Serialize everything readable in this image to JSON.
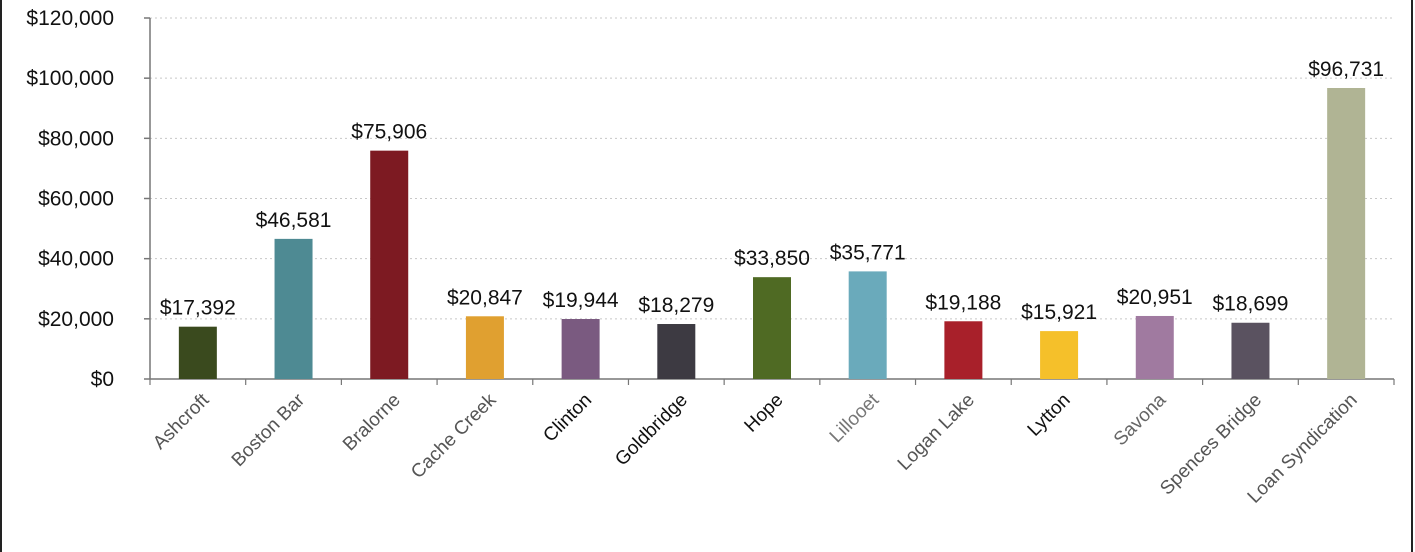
{
  "chart_data": {
    "type": "bar",
    "categories": [
      "Ashcroft",
      "Boston Bar",
      "Bralorne",
      "Cache Creek",
      "Clinton",
      "Goldbridge",
      "Hope",
      "Lillooet",
      "Logan Lake",
      "Lytton",
      "Savona",
      "Spences Bridge",
      "Loan Syndication"
    ],
    "values": [
      17392,
      46581,
      75906,
      20847,
      19944,
      18279,
      33850,
      35771,
      19188,
      15921,
      20951,
      18699,
      96731
    ],
    "data_labels": [
      "$17,392",
      "$46,581",
      "$75,906",
      "$20,847",
      "$19,944",
      "$18,279",
      "$33,850",
      "$35,771",
      "$19,188",
      "$15,921",
      "$20,951",
      "$18,699",
      "$96,731"
    ],
    "colors": [
      "#3a4a1e",
      "#4e8a93",
      "#7d1a22",
      "#e0a030",
      "#7a5a80",
      "#3d3a42",
      "#4f6a23",
      "#6aaabb",
      "#a8202a",
      "#f5c02a",
      "#a07aa0",
      "#5a5260",
      "#b0b494"
    ],
    "label_colors": [
      "#555555",
      "#555555",
      "#555555",
      "#555555",
      "#111111",
      "#111111",
      "#111111",
      "#777777",
      "#555555",
      "#111111",
      "#666666",
      "#555555",
      "#555555"
    ],
    "ytick_labels": [
      "$0",
      "$20,000",
      "$40,000",
      "$60,000",
      "$80,000",
      "$100,000",
      "$120,000"
    ],
    "yticks": [
      0,
      20000,
      40000,
      60000,
      80000,
      100000,
      120000
    ],
    "ylim": [
      0,
      120000
    ],
    "grid": true,
    "title": "",
    "xlabel": "",
    "ylabel": ""
  }
}
